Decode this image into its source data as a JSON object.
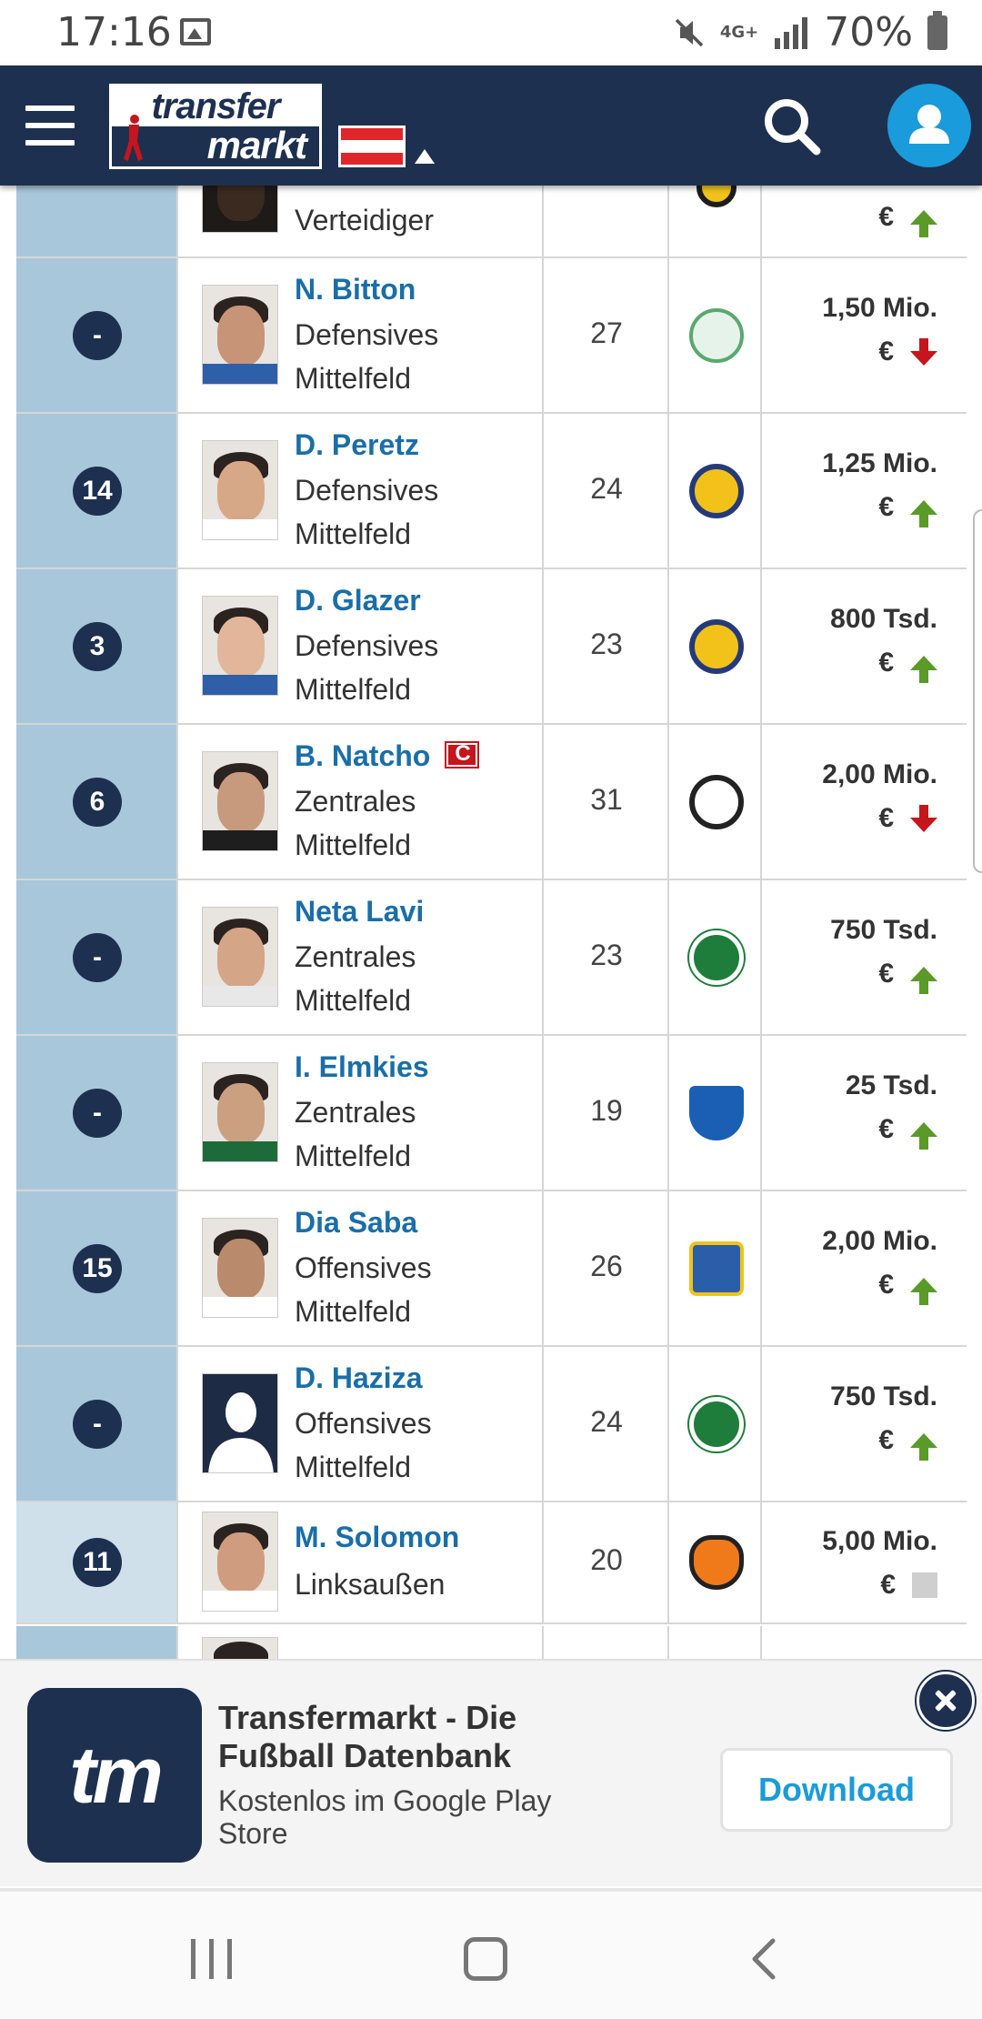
{
  "status_bar": {
    "time": "17:16",
    "network": "4G+",
    "battery": "70%"
  },
  "header": {
    "logo_top": "transfer",
    "logo_bottom": "markt",
    "flag_colors": [
      "#e0262b",
      "#ffffff",
      "#e0262b"
    ]
  },
  "table": {
    "partial_top_row": {
      "position": "Verteidiger",
      "value_currency": "€",
      "trend": "up"
    },
    "rows": [
      {
        "number": "-",
        "name": "N. Bitton",
        "pos1": "Defensives",
        "pos2": "Mittelfeld",
        "age": "27",
        "value": "1,50 Mio.",
        "currency": "€",
        "trend": "down",
        "club": "celtic-logo",
        "captain": false
      },
      {
        "number": "14",
        "name": "D. Peretz",
        "pos1": "Defensives",
        "pos2": "Mittelfeld",
        "age": "24",
        "value": "1,25 Mio.",
        "currency": "€",
        "trend": "up",
        "club": "maccabi-tel-aviv-logo",
        "captain": false
      },
      {
        "number": "3",
        "name": "D. Glazer",
        "pos1": "Defensives",
        "pos2": "Mittelfeld",
        "age": "23",
        "value": "800 Tsd.",
        "currency": "€",
        "trend": "up",
        "club": "maccabi-tel-aviv-logo",
        "captain": false
      },
      {
        "number": "6",
        "name": "B. Natcho",
        "pos1": "Zentrales",
        "pos2": "Mittelfeld",
        "age": "31",
        "value": "2,00 Mio.",
        "currency": "€",
        "trend": "down",
        "club": "partizan-logo",
        "captain": true
      },
      {
        "number": "-",
        "name": "Neta Lavi",
        "pos1": "Zentrales",
        "pos2": "Mittelfeld",
        "age": "23",
        "value": "750 Tsd.",
        "currency": "€",
        "trend": "up",
        "club": "maccabi-haifa-logo",
        "captain": false
      },
      {
        "number": "-",
        "name": "I. Elmkies",
        "pos1": "Zentrales",
        "pos2": "Mittelfeld",
        "age": "19",
        "value": "25 Tsd.",
        "currency": "€",
        "trend": "up",
        "club": "hoffenheim-logo",
        "captain": false
      },
      {
        "number": "15",
        "name": "Dia Saba",
        "pos1": "Offensives",
        "pos2": "Mittelfeld",
        "age": "26",
        "value": "2,00 Mio.",
        "currency": "€",
        "trend": "up",
        "club": "guangzhou-logo",
        "captain": false
      },
      {
        "number": "-",
        "name": "D. Haziza",
        "pos1": "Offensives",
        "pos2": "Mittelfeld",
        "age": "24",
        "value": "750 Tsd.",
        "currency": "€",
        "trend": "up",
        "club": "maccabi-haifa-logo",
        "captain": false
      },
      {
        "number": "11",
        "name": "M. Solomon",
        "pos1": "Linksaußen",
        "pos2": "",
        "age": "20",
        "value": "5,00 Mio.",
        "currency": "€",
        "trend": "neutral",
        "club": "shakhtar-logo",
        "captain": false
      }
    ]
  },
  "banner": {
    "icon_text": "tm",
    "title": "Transfermarkt - Die Fußball Datenbank",
    "subtitle": "Kostenlos im Google Play Store",
    "download_label": "Download"
  },
  "colors": {
    "header_bg": "#1d3050",
    "accent_blue": "#1a9bdb",
    "link_blue": "#1a6ea8",
    "up_green": "#5a9a28",
    "down_red": "#c4161c"
  }
}
